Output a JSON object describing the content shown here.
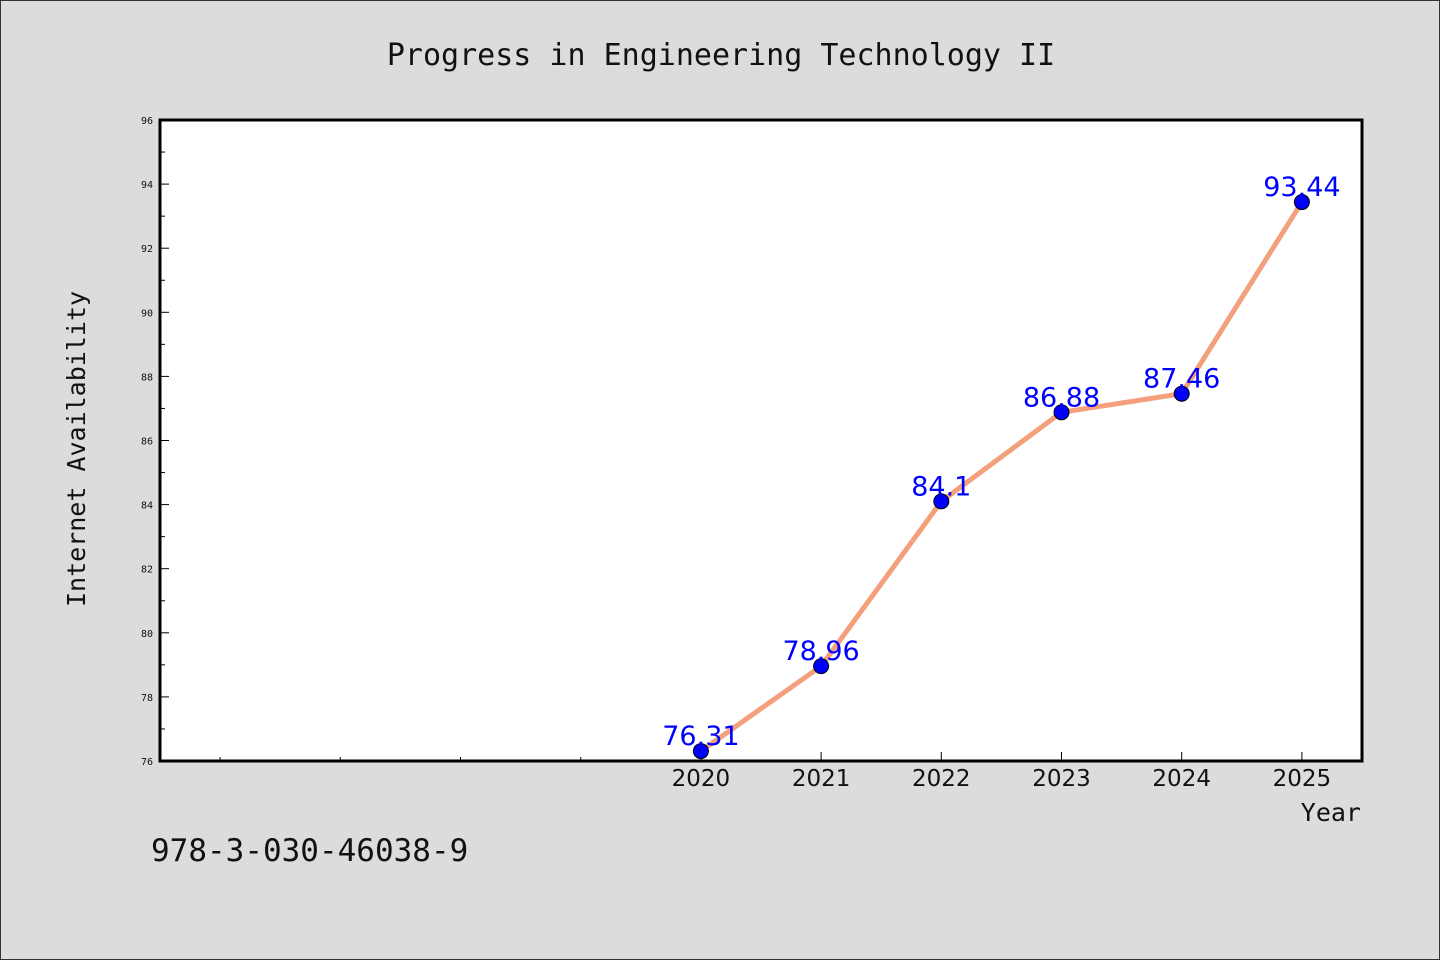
{
  "colors": {
    "background": "#dcdcdc",
    "plot_background": "#ffffff",
    "line": "#f4a07c",
    "marker": "#0000ff",
    "data_label": "#0000ff"
  },
  "footer": {
    "isbn": "978-3-030-46038-9"
  },
  "chart_data": {
    "type": "line",
    "title": "Progress in Engineering Technology II",
    "xlabel": "Year",
    "ylabel": "Internet Availability",
    "x": [
      2020,
      2021,
      2022,
      2023,
      2024,
      2025
    ],
    "xlim": [
      2015.5,
      2025.5
    ],
    "x_tick_labels": [
      "2020",
      "2021",
      "2022",
      "2023",
      "2024",
      "2025"
    ],
    "ylim": [
      76,
      96
    ],
    "y_ticks": [
      76,
      78,
      80,
      82,
      84,
      86,
      88,
      90,
      92,
      94,
      96
    ],
    "grid": false,
    "series": [
      {
        "values": [
          76.31,
          78.96,
          84.1,
          86.88,
          87.46,
          93.44
        ],
        "data_labels": [
          "76.31",
          "78.96",
          "84.1",
          "86.88",
          "87.46",
          "93.44"
        ],
        "color": "#f4a07c",
        "marker_color": "#0000ff"
      }
    ]
  }
}
